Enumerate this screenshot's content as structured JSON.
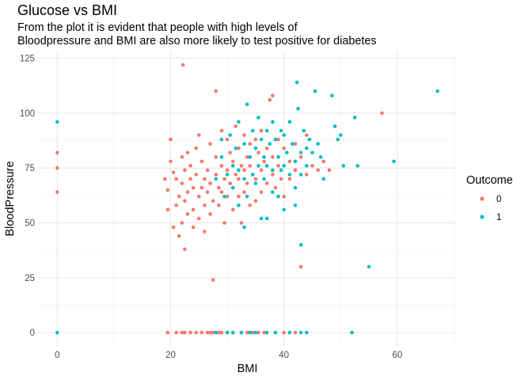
{
  "chart_data": {
    "type": "scatter",
    "title": "Glucose vs BMI",
    "subtitle_lines": [
      "From the plot it is evident that people with high levels of",
      "Bloodpressure and BMI are also more likely to test positive for diabetes"
    ],
    "xlabel": "BMI",
    "ylabel": "BloodPressure",
    "xlim": [
      -3.4,
      70.5
    ],
    "ylim": [
      -6.1,
      128.1
    ],
    "x_ticks": [
      0,
      20,
      40,
      60
    ],
    "y_ticks": [
      0,
      25,
      50,
      75,
      100,
      125
    ],
    "grid": true,
    "legend": {
      "title": "Outcome",
      "position": "right"
    },
    "series": [
      {
        "name": "0",
        "color": "#F8766D",
        "points": [
          [
            0,
            82
          ],
          [
            0,
            75
          ],
          [
            0,
            64
          ],
          [
            19,
            70
          ],
          [
            19.5,
            65
          ],
          [
            19.5,
            56
          ],
          [
            20,
            88
          ],
          [
            20,
            78
          ],
          [
            20.5,
            73
          ],
          [
            20.5,
            48
          ],
          [
            21,
            70
          ],
          [
            21,
            58
          ],
          [
            21.5,
            62
          ],
          [
            21.5,
            44
          ],
          [
            22,
            80
          ],
          [
            22,
            68
          ],
          [
            22,
            50
          ],
          [
            22.2,
            122
          ],
          [
            22.5,
            74
          ],
          [
            22.5,
            60
          ],
          [
            22.5,
            38
          ],
          [
            23,
            82
          ],
          [
            23,
            64
          ],
          [
            23,
            54
          ],
          [
            23.5,
            76
          ],
          [
            23.5,
            70
          ],
          [
            24,
            66
          ],
          [
            24,
            56
          ],
          [
            24,
            48
          ],
          [
            24.5,
            84
          ],
          [
            24.5,
            72
          ],
          [
            25,
            90
          ],
          [
            25,
            62
          ],
          [
            25,
            52
          ],
          [
            25.5,
            78
          ],
          [
            25.5,
            66
          ],
          [
            26,
            70
          ],
          [
            26,
            58
          ],
          [
            26,
            46
          ],
          [
            26.5,
            74
          ],
          [
            26.5,
            64
          ],
          [
            27,
            86
          ],
          [
            27,
            68
          ],
          [
            27,
            54
          ],
          [
            27.5,
            24
          ],
          [
            27.5,
            60
          ],
          [
            28,
            110
          ],
          [
            28,
            80
          ],
          [
            28,
            72
          ],
          [
            28.5,
            66
          ],
          [
            28.5,
            58
          ],
          [
            29,
            92
          ],
          [
            29,
            76
          ],
          [
            29,
            64
          ],
          [
            29.5,
            70
          ],
          [
            29.5,
            50
          ],
          [
            30,
            88
          ],
          [
            30,
            74
          ],
          [
            30,
            62
          ],
          [
            30.5,
            82
          ],
          [
            30.5,
            68
          ],
          [
            31,
            78
          ],
          [
            31,
            66
          ],
          [
            31,
            56
          ],
          [
            31.5,
            94
          ],
          [
            31.5,
            72
          ],
          [
            32,
            84
          ],
          [
            32,
            70
          ],
          [
            32,
            62
          ],
          [
            32.5,
            76
          ],
          [
            32.5,
            50
          ],
          [
            33,
            90
          ],
          [
            33,
            74
          ],
          [
            33,
            64
          ],
          [
            33.5,
            80
          ],
          [
            33.5,
            68
          ],
          [
            34,
            86
          ],
          [
            34,
            76
          ],
          [
            34,
            58
          ],
          [
            34.5,
            72
          ],
          [
            35,
            88
          ],
          [
            35,
            70
          ],
          [
            35,
            60
          ],
          [
            35.5,
            82
          ],
          [
            36,
            92
          ],
          [
            36,
            74
          ],
          [
            36,
            64
          ],
          [
            36.5,
            78
          ],
          [
            37,
            84
          ],
          [
            37,
            68
          ],
          [
            37.5,
            106
          ],
          [
            38,
            80
          ],
          [
            38,
            72
          ],
          [
            38,
            108
          ],
          [
            38.5,
            66
          ],
          [
            39,
            88
          ],
          [
            39,
            76
          ],
          [
            39.5,
            70
          ],
          [
            40,
            84
          ],
          [
            40,
            62
          ],
          [
            41,
            78
          ],
          [
            41,
            70
          ],
          [
            42,
            86
          ],
          [
            42,
            74
          ],
          [
            43,
            30
          ],
          [
            43,
            80
          ],
          [
            44,
            72
          ],
          [
            44,
            90
          ],
          [
            45,
            76
          ],
          [
            46,
            74
          ],
          [
            47,
            78
          ],
          [
            48,
            74
          ],
          [
            57.3,
            100
          ],
          [
            19.5,
            0
          ],
          [
            21,
            0
          ],
          [
            22,
            0
          ],
          [
            22.5,
            0
          ],
          [
            23.5,
            0
          ],
          [
            24.5,
            0
          ],
          [
            25.5,
            0
          ],
          [
            26.5,
            0
          ],
          [
            27,
            0
          ],
          [
            27.5,
            0
          ],
          [
            28.5,
            0
          ],
          [
            29,
            0
          ],
          [
            30,
            0
          ],
          [
            31,
            0
          ],
          [
            32.5,
            0
          ],
          [
            33.5,
            0
          ],
          [
            34.5,
            0
          ],
          [
            35.5,
            0
          ],
          [
            36.5,
            0
          ],
          [
            38.5,
            0
          ],
          [
            40,
            0
          ],
          [
            42,
            0
          ]
        ]
      },
      {
        "name": "1",
        "color": "#00BFC4",
        "points": [
          [
            0,
            96
          ],
          [
            0,
            0
          ],
          [
            28,
            70
          ],
          [
            28,
            0
          ],
          [
            29,
            88
          ],
          [
            29,
            80
          ],
          [
            29.5,
            62
          ],
          [
            30,
            72
          ],
          [
            30,
            0
          ],
          [
            30.5,
            90
          ],
          [
            31,
            76
          ],
          [
            31,
            66
          ],
          [
            31,
            0
          ],
          [
            31.5,
            84
          ],
          [
            32,
            96
          ],
          [
            32,
            74
          ],
          [
            32,
            58
          ],
          [
            32.5,
            0
          ],
          [
            33,
            86
          ],
          [
            33,
            70
          ],
          [
            33,
            48
          ],
          [
            33.5,
            104
          ],
          [
            33.5,
            62
          ],
          [
            34,
            80
          ],
          [
            34,
            0
          ],
          [
            34.5,
            92
          ],
          [
            34.5,
            72
          ],
          [
            35,
            84
          ],
          [
            35,
            68
          ],
          [
            35,
            0
          ],
          [
            35.5,
            98
          ],
          [
            35.5,
            76
          ],
          [
            36,
            88
          ],
          [
            36,
            52
          ],
          [
            36.5,
            80
          ],
          [
            36.5,
            70
          ],
          [
            37,
            92
          ],
          [
            37,
            76
          ],
          [
            37,
            52
          ],
          [
            37,
            0
          ],
          [
            37.5,
            86
          ],
          [
            38,
            96
          ],
          [
            38,
            74
          ],
          [
            38,
            64
          ],
          [
            38.5,
            88
          ],
          [
            38.5,
            0
          ],
          [
            39,
            80
          ],
          [
            39,
            62
          ],
          [
            39.5,
            92
          ],
          [
            39.5,
            74
          ],
          [
            40,
            90
          ],
          [
            40,
            76
          ],
          [
            40,
            56
          ],
          [
            40.5,
            82
          ],
          [
            41,
            96
          ],
          [
            41,
            72
          ],
          [
            41,
            0
          ],
          [
            41.5,
            86
          ],
          [
            42,
            78
          ],
          [
            42,
            66
          ],
          [
            42,
            58
          ],
          [
            42.3,
            114
          ],
          [
            42.5,
            102
          ],
          [
            43,
            82
          ],
          [
            43,
            72
          ],
          [
            43,
            40
          ],
          [
            43,
            0
          ],
          [
            43.5,
            92
          ],
          [
            44,
            84
          ],
          [
            44,
            76
          ],
          [
            44,
            0
          ],
          [
            44.5,
            88
          ],
          [
            45,
            82
          ],
          [
            45.5,
            110
          ],
          [
            46,
            86
          ],
          [
            46.5,
            80
          ],
          [
            47,
            70
          ],
          [
            48.5,
            108
          ],
          [
            49,
            94
          ],
          [
            49.5,
            88
          ],
          [
            50,
            90
          ],
          [
            50.5,
            76
          ],
          [
            52,
            0
          ],
          [
            52.5,
            98
          ],
          [
            53,
            76
          ],
          [
            55,
            30
          ],
          [
            59.4,
            78
          ],
          [
            67.1,
            110
          ]
        ]
      }
    ]
  }
}
